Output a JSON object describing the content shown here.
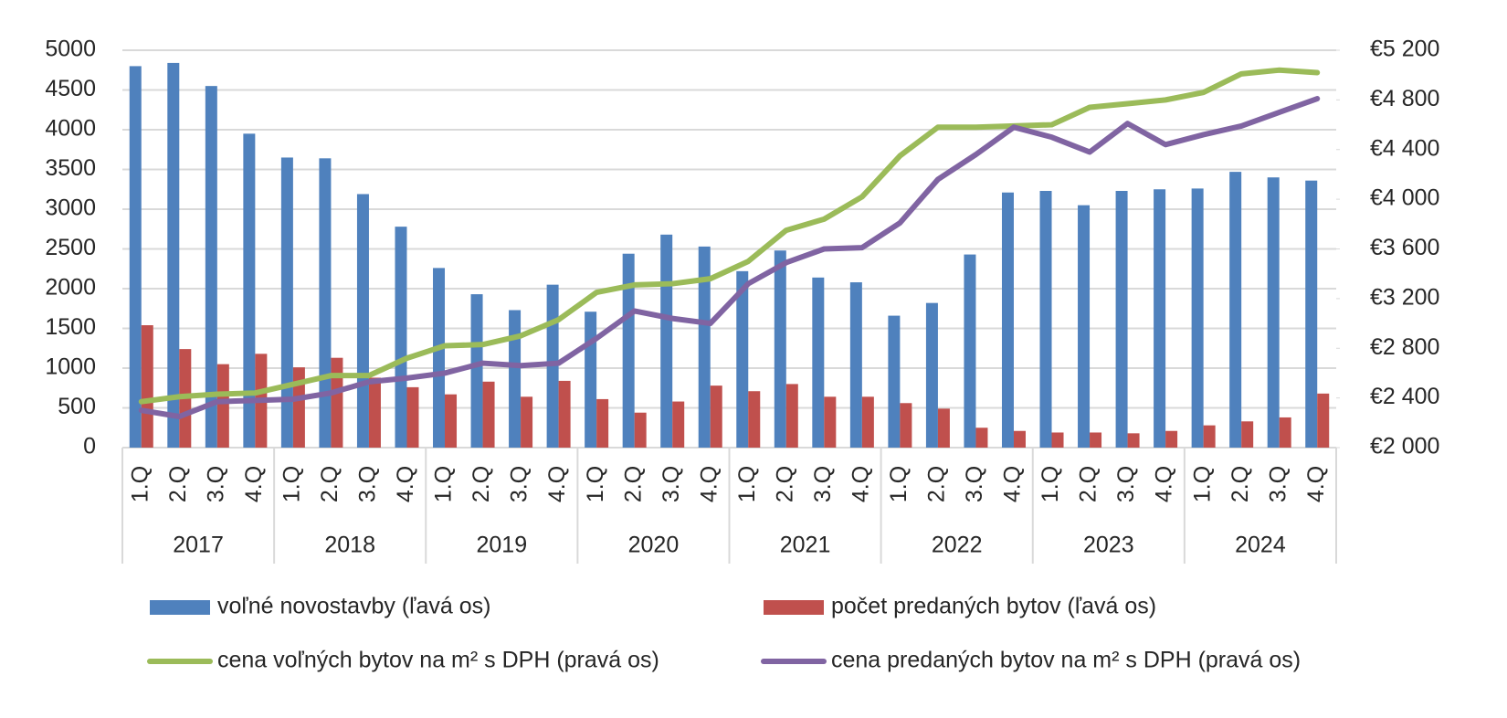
{
  "chart_data": {
    "type": "combo",
    "categories": [
      "1.Q",
      "2.Q",
      "3.Q",
      "4.Q",
      "1.Q",
      "2.Q",
      "3.Q",
      "4.Q",
      "1.Q",
      "2.Q",
      "3.Q",
      "4.Q",
      "1.Q",
      "2.Q",
      "3.Q",
      "4.Q",
      "1.Q",
      "2.Q",
      "3.Q",
      "4.Q",
      "1.Q",
      "2.Q",
      "3.Q",
      "4.Q",
      "1.Q",
      "2.Q",
      "3.Q",
      "4.Q",
      "1.Q",
      "2.Q",
      "3.Q",
      "4.Q"
    ],
    "groups": [
      "2017",
      "2018",
      "2019",
      "2020",
      "2021",
      "2022",
      "2023",
      "2024"
    ],
    "ylim": [
      0,
      5000
    ],
    "yticks": [
      0,
      500,
      1000,
      1500,
      2000,
      2500,
      3000,
      3500,
      4000,
      4500,
      5000
    ],
    "y2lim": [
      2000,
      5200
    ],
    "y2ticks": [
      {
        "value": 2000,
        "label": "€2 000"
      },
      {
        "value": 2400,
        "label": "€2 400"
      },
      {
        "value": 2800,
        "label": "€2 800"
      },
      {
        "value": 3200,
        "label": "€3 200"
      },
      {
        "value": 3600,
        "label": "€3 600"
      },
      {
        "value": 4000,
        "label": "€4 000"
      },
      {
        "value": 4400,
        "label": "€4 400"
      },
      {
        "value": 4800,
        "label": "€4 800"
      },
      {
        "value": 5200,
        "label": "€5 200"
      }
    ],
    "grid": true,
    "series": [
      {
        "name": "voľné novostavby (ľavá os)",
        "type": "bar",
        "color": "#4f81bd",
        "values": [
          4800,
          4840,
          4550,
          3950,
          3650,
          3640,
          3190,
          2780,
          2260,
          1930,
          1730,
          2050,
          1710,
          2440,
          2680,
          2530,
          2220,
          2480,
          2140,
          2080,
          1660,
          1820,
          2430,
          3210,
          3230,
          3050,
          3230,
          3250,
          3260,
          3470,
          3400,
          3360
        ]
      },
      {
        "name": "počet predaných bytov (ľavá os)",
        "type": "bar",
        "color": "#c0504d",
        "values": [
          1540,
          1240,
          1050,
          1180,
          1010,
          1130,
          880,
          760,
          670,
          830,
          640,
          840,
          610,
          440,
          580,
          780,
          710,
          800,
          640,
          640,
          560,
          490,
          250,
          210,
          190,
          190,
          180,
          210,
          280,
          330,
          380,
          680
        ]
      },
      {
        "name": "cena voľných bytov na m² s DPH (pravá os)",
        "type": "line",
        "axis": "y2",
        "color": "#9bbb59",
        "values": [
          2370,
          2410,
          2430,
          2440,
          2510,
          2580,
          2580,
          2720,
          2820,
          2830,
          2900,
          3030,
          3250,
          3310,
          3320,
          3360,
          3500,
          3750,
          3840,
          4020,
          4350,
          4580,
          4580,
          4590,
          4600,
          4740,
          4770,
          4800,
          4860,
          5010,
          5040,
          5020
        ]
      },
      {
        "name": "cena predaných bytov na m² s  DPH (pravá os)",
        "type": "line",
        "axis": "y2",
        "color": "#8064a2",
        "values": [
          2300,
          2250,
          2370,
          2380,
          2390,
          2440,
          2530,
          2560,
          2600,
          2680,
          2660,
          2680,
          2880,
          3100,
          3040,
          3000,
          3320,
          3490,
          3600,
          3610,
          3810,
          4160,
          4360,
          4580,
          4500,
          4380,
          4610,
          4440,
          4520,
          4590,
          4700,
          4810
        ]
      }
    ]
  }
}
